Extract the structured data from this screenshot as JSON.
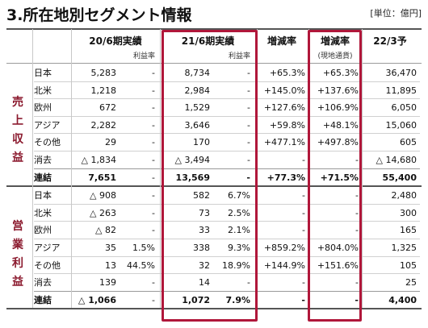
{
  "title": "3.所在地別セグメント情報",
  "unit": "[単位：億円]",
  "headers": {
    "fy20": "20/6期実績",
    "fy21": "21/6期実績",
    "change": "増減率",
    "change_local": "増減率",
    "change_local_sub": "(現地通貨)",
    "fy22": "22/3予",
    "margin": "利益率"
  },
  "sections": {
    "revenue": "売上収益",
    "operating": "営業利益"
  },
  "revenue_rows": [
    {
      "region": "日本",
      "fy20": "5,283",
      "fy20_m": "-",
      "fy21": "8,734",
      "fy21_m": "-",
      "chg": "+65.3%",
      "chg_local": "+65.3%",
      "fy22": "36,470"
    },
    {
      "region": "北米",
      "fy20": "1,218",
      "fy20_m": "-",
      "fy21": "2,984",
      "fy21_m": "-",
      "chg": "+145.0%",
      "chg_local": "+137.6%",
      "fy22": "11,895"
    },
    {
      "region": "欧州",
      "fy20": "672",
      "fy20_m": "-",
      "fy21": "1,529",
      "fy21_m": "-",
      "chg": "+127.6%",
      "chg_local": "+106.9%",
      "fy22": "6,050"
    },
    {
      "region": "アジア",
      "fy20": "2,282",
      "fy20_m": "-",
      "fy21": "3,646",
      "fy21_m": "-",
      "chg": "+59.8%",
      "chg_local": "+48.1%",
      "fy22": "15,060"
    },
    {
      "region": "その他",
      "fy20": "29",
      "fy20_m": "-",
      "fy21": "170",
      "fy21_m": "-",
      "chg": "+477.1%",
      "chg_local": "+497.8%",
      "fy22": "605"
    },
    {
      "region": "消去",
      "fy20": "△ 1,834",
      "fy20_m": "-",
      "fy21": "△ 3,494",
      "fy21_m": "-",
      "chg": "-",
      "chg_local": "-",
      "fy22": "△ 14,680"
    },
    {
      "region": "連結",
      "fy20": "7,651",
      "fy20_m": "-",
      "fy21": "13,569",
      "fy21_m": "-",
      "chg": "+77.3%",
      "chg_local": "+71.5%",
      "fy22": "55,400"
    }
  ],
  "operating_rows": [
    {
      "region": "日本",
      "fy20": "△ 908",
      "fy20_m": "-",
      "fy21": "582",
      "fy21_m": "6.7%",
      "chg": "-",
      "chg_local": "-",
      "fy22": "2,480"
    },
    {
      "region": "北米",
      "fy20": "△ 263",
      "fy20_m": "-",
      "fy21": "73",
      "fy21_m": "2.5%",
      "chg": "-",
      "chg_local": "-",
      "fy22": "300"
    },
    {
      "region": "欧州",
      "fy20": "△ 82",
      "fy20_m": "-",
      "fy21": "33",
      "fy21_m": "2.1%",
      "chg": "-",
      "chg_local": "-",
      "fy22": "165"
    },
    {
      "region": "アジア",
      "fy20": "35",
      "fy20_m": "1.5%",
      "fy21": "338",
      "fy21_m": "9.3%",
      "chg": "+859.2%",
      "chg_local": "+804.0%",
      "fy22": "1,325"
    },
    {
      "region": "その他",
      "fy20": "13",
      "fy20_m": "44.5%",
      "fy21": "32",
      "fy21_m": "18.9%",
      "chg": "+144.9%",
      "chg_local": "+151.6%",
      "fy22": "105"
    },
    {
      "region": "消去",
      "fy20": "139",
      "fy20_m": "-",
      "fy21": "14",
      "fy21_m": "-",
      "chg": "-",
      "chg_local": "-",
      "fy22": "25"
    },
    {
      "region": "連結",
      "fy20": "△ 1,066",
      "fy20_m": "-",
      "fy21": "1,072",
      "fy21_m": "7.9%",
      "chg": "-",
      "chg_local": "-",
      "fy22": "4,400"
    }
  ],
  "colors": {
    "highlight_box": "#b0173a",
    "section_label": "#8b1a2e"
  }
}
